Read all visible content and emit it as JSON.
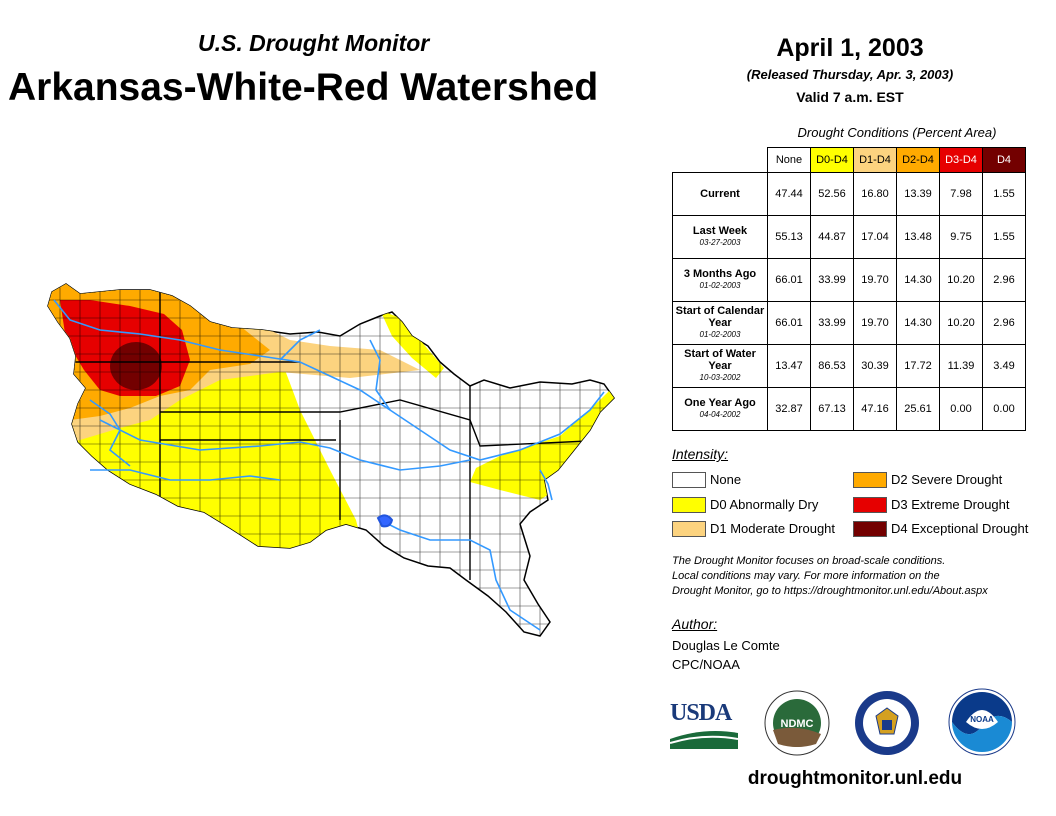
{
  "header": {
    "subtitle": "U.S. Drought Monitor",
    "title": "Arkansas-White-Red Watershed",
    "date": "April 1, 2003",
    "released": "(Released Thursday, Apr. 3, 2003)",
    "valid": "Valid 7 a.m. EST"
  },
  "table": {
    "caption": "Drought Conditions (Percent Area)",
    "columns": [
      "None",
      "D0-D4",
      "D1-D4",
      "D2-D4",
      "D3-D4",
      "D4"
    ],
    "column_colors": [
      "#ffffff",
      "#ffff00",
      "#fcd37f",
      "#ffaa00",
      "#e60000",
      "#730000"
    ],
    "rows": [
      {
        "label": "Current",
        "date": "",
        "values": [
          "47.44",
          "52.56",
          "16.80",
          "13.39",
          "7.98",
          "1.55"
        ]
      },
      {
        "label": "Last Week",
        "date": "03-27-2003",
        "values": [
          "55.13",
          "44.87",
          "17.04",
          "13.48",
          "9.75",
          "1.55"
        ]
      },
      {
        "label": "3 Months Ago",
        "date": "01-02-2003",
        "values": [
          "66.01",
          "33.99",
          "19.70",
          "14.30",
          "10.20",
          "2.96"
        ]
      },
      {
        "label": "Start of Calendar Year",
        "date": "01-02-2003",
        "values": [
          "66.01",
          "33.99",
          "19.70",
          "14.30",
          "10.20",
          "2.96"
        ]
      },
      {
        "label": "Start of Water Year",
        "date": "10-03-2002",
        "values": [
          "13.47",
          "86.53",
          "30.39",
          "17.72",
          "11.39",
          "3.49"
        ]
      },
      {
        "label": "One Year Ago",
        "date": "04-04-2002",
        "values": [
          "32.87",
          "67.13",
          "47.16",
          "25.61",
          "0.00",
          "0.00"
        ]
      }
    ]
  },
  "legend": {
    "title": "Intensity:",
    "items": [
      {
        "label": "None",
        "color": "#ffffff"
      },
      {
        "label": "D0 Abnormally Dry",
        "color": "#ffff00"
      },
      {
        "label": "D1 Moderate Drought",
        "color": "#fcd37f"
      },
      {
        "label": "D2 Severe Drought",
        "color": "#ffaa00"
      },
      {
        "label": "D3 Extreme Drought",
        "color": "#e60000"
      },
      {
        "label": "D4 Exceptional Drought",
        "color": "#730000"
      }
    ]
  },
  "note": {
    "line1": "The Drought Monitor focuses on broad-scale conditions.",
    "line2": "Local conditions may vary. For more information on the",
    "line3": "Drought Monitor, go to https://droughtmonitor.unl.edu/About.aspx"
  },
  "author": {
    "label": "Author:",
    "name": "Douglas Le Comte",
    "org": "CPC/NOAA"
  },
  "logos": {
    "usda": "USDA",
    "ndmc": "NDMC",
    "noaa": "NOAA"
  },
  "footer": {
    "url": "droughtmonitor.unl.edu"
  },
  "colors": {
    "river": "#3399ff",
    "county_line": "#000000"
  }
}
